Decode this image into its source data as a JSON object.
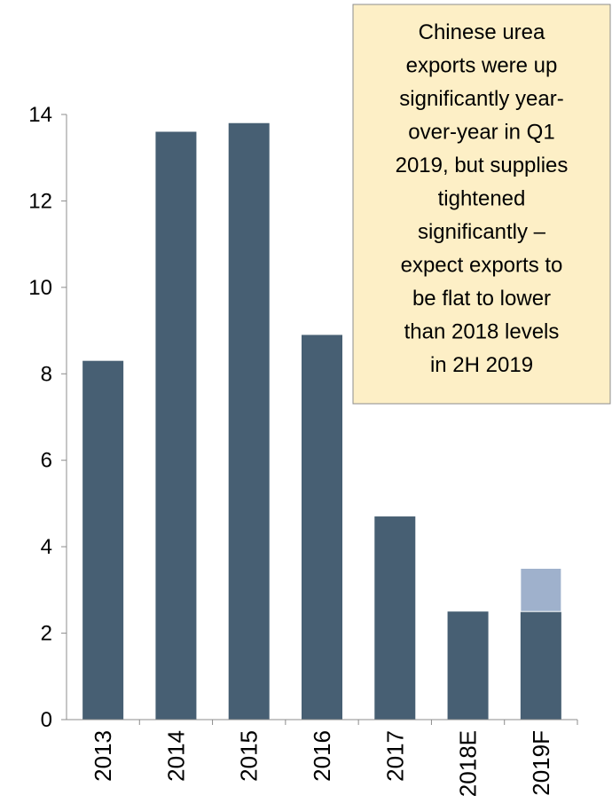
{
  "chart_data": {
    "type": "bar",
    "stacked": true,
    "categories": [
      "2013",
      "2014",
      "2015",
      "2016",
      "2017",
      "2018E",
      "2019F"
    ],
    "series": [
      {
        "color": "#475f73",
        "values": [
          8.3,
          13.6,
          13.8,
          8.9,
          4.7,
          2.5,
          2.5
        ]
      },
      {
        "color": "#9fb1cc",
        "values": [
          null,
          null,
          null,
          null,
          null,
          null,
          1.0
        ]
      }
    ],
    "ylim": [
      0,
      14
    ],
    "yticks": [
      0,
      2,
      4,
      6,
      8,
      10,
      12,
      14
    ],
    "grid": false,
    "annotation": [
      "Chinese urea",
      "exports were up",
      "significantly year-",
      "over-year in Q1",
      "2019, but supplies",
      "tightened",
      "significantly –",
      "expect exports to",
      "be flat to lower",
      "than 2018 levels",
      "in 2H 2019"
    ]
  }
}
